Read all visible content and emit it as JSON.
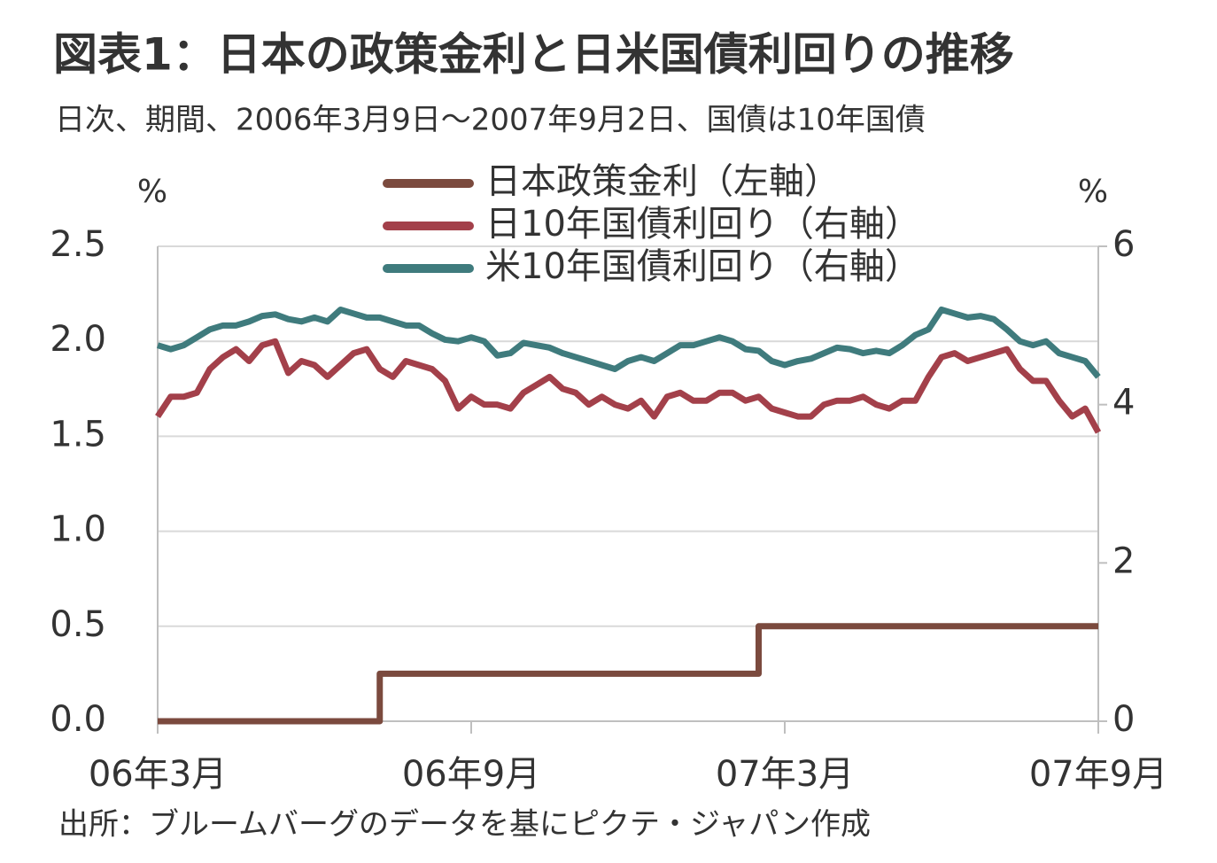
{
  "chart_data": {
    "type": "line",
    "title": "図表1：日本の政策金利と日米国債利回りの推移",
    "subtitle": "日次、期間、2006年3月9日～2007年9月2日、国債は10年国債",
    "y_label": "%",
    "y2_label": "%",
    "source": "出所：ブルームバーグのデータを基にピクテ・ジャパン作成",
    "categories": [
      "06年3月",
      null,
      null,
      null,
      null,
      null,
      null,
      null,
      null,
      null,
      null,
      null,
      null,
      null,
      null,
      null,
      null,
      null,
      null,
      null,
      null,
      null,
      null,
      null,
      "06年9月",
      null,
      null,
      null,
      null,
      null,
      null,
      null,
      null,
      null,
      null,
      null,
      null,
      null,
      null,
      null,
      null,
      null,
      null,
      null,
      null,
      null,
      null,
      null,
      "07年3月",
      null,
      null,
      null,
      null,
      null,
      null,
      null,
      null,
      null,
      null,
      null,
      null,
      null,
      null,
      null,
      null,
      null,
      null,
      null,
      null,
      null,
      null,
      null,
      "07年9月"
    ],
    "ylim": [
      0,
      2.5
    ],
    "yticks": [
      {
        "value": 0,
        "label": "0.0"
      },
      0.5,
      {
        "value": 1,
        "label": "1.0"
      },
      1.5,
      {
        "value": 2,
        "label": "2.0"
      },
      2.5
    ],
    "y2lim": [
      0,
      6
    ],
    "y2ticks": [
      0,
      2,
      4,
      6
    ],
    "grid": true,
    "legend": "top",
    "series": [
      {
        "name": "日本政策金利（左軸）",
        "color": "#7b4a3e",
        "step": true,
        "values": [
          0,
          0,
          0,
          0,
          0,
          0,
          0,
          0,
          0,
          0,
          0,
          0,
          0,
          0,
          0,
          0,
          0,
          0.25,
          0.25,
          0.25,
          0.25,
          0.25,
          0.25,
          0.25,
          0.25,
          0.25,
          0.25,
          0.25,
          0.25,
          0.25,
          0.25,
          0.25,
          0.25,
          0.25,
          0.25,
          0.25,
          0.25,
          0.25,
          0.25,
          0.25,
          0.25,
          0.25,
          0.25,
          0.25,
          0.25,
          0.25,
          0.5,
          0.5,
          0.5,
          0.5,
          0.5,
          0.5,
          0.5,
          0.5,
          0.5,
          0.5,
          0.5,
          0.5,
          0.5,
          0.5,
          0.5,
          0.5,
          0.5,
          0.5,
          0.5,
          0.5,
          0.5,
          0.5,
          0.5,
          0.5,
          0.5,
          0.5,
          0.5
        ]
      },
      {
        "name": "日10年国債利回り（右軸）",
        "color": "#a3404a",
        "axis": "y2",
        "values": [
          3.85,
          4.1,
          4.1,
          4.15,
          4.45,
          4.6,
          4.7,
          4.55,
          4.75,
          4.8,
          4.4,
          4.55,
          4.5,
          4.35,
          4.5,
          4.65,
          4.7,
          4.45,
          4.35,
          4.55,
          4.5,
          4.45,
          4.3,
          3.95,
          4.1,
          4.0,
          4.0,
          3.95,
          4.15,
          4.25,
          4.35,
          4.2,
          4.15,
          4.0,
          4.1,
          4.0,
          3.95,
          4.05,
          3.85,
          4.1,
          4.15,
          4.05,
          4.05,
          4.15,
          4.15,
          4.05,
          4.1,
          3.95,
          3.9,
          3.85,
          3.85,
          4.0,
          4.05,
          4.05,
          4.1,
          4.0,
          3.95,
          4.05,
          4.05,
          4.35,
          4.6,
          4.65,
          4.55,
          4.6,
          4.65,
          4.7,
          4.45,
          4.3,
          4.3,
          4.05,
          3.85,
          3.95,
          3.65
        ]
      },
      {
        "name": "米10年国債利回り（右軸）",
        "color": "#3f7b7d",
        "axis": "y2",
        "values": [
          4.75,
          4.7,
          4.75,
          4.85,
          4.95,
          5.0,
          5.0,
          5.05,
          5.12,
          5.14,
          5.08,
          5.05,
          5.1,
          5.05,
          5.2,
          5.15,
          5.1,
          5.1,
          5.05,
          5.0,
          5.0,
          4.9,
          4.82,
          4.8,
          4.85,
          4.8,
          4.62,
          4.65,
          4.78,
          4.75,
          4.72,
          4.65,
          4.6,
          4.55,
          4.5,
          4.45,
          4.55,
          4.6,
          4.55,
          4.65,
          4.75,
          4.75,
          4.8,
          4.85,
          4.8,
          4.7,
          4.68,
          4.55,
          4.5,
          4.55,
          4.58,
          4.65,
          4.72,
          4.7,
          4.65,
          4.68,
          4.65,
          4.75,
          4.88,
          4.95,
          5.2,
          5.15,
          5.1,
          5.12,
          5.08,
          4.95,
          4.8,
          4.75,
          4.8,
          4.65,
          4.6,
          4.55,
          4.35
        ]
      }
    ]
  }
}
